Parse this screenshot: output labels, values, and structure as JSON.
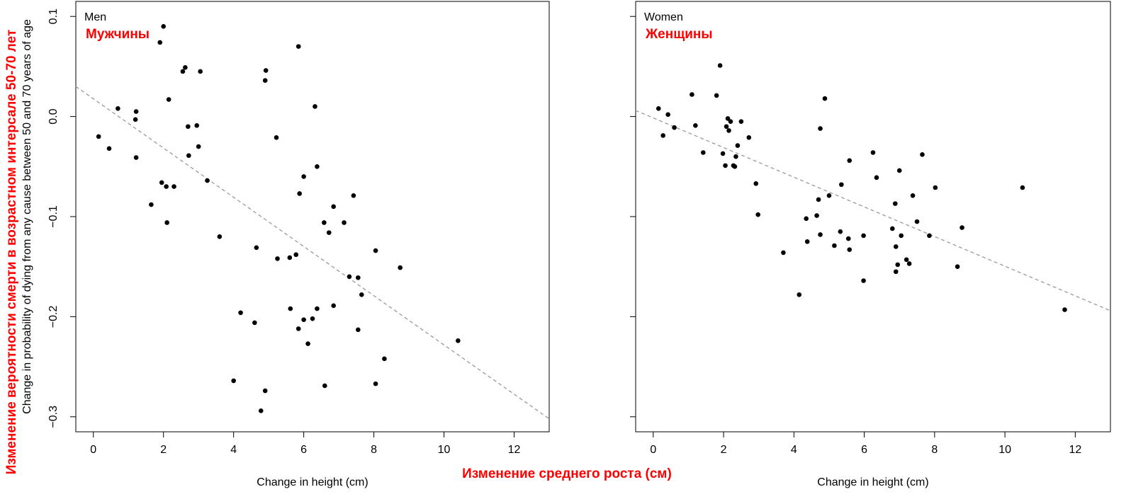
{
  "annotations": {
    "ylabel_ru": "Изменение вероятности смерти в возрастном интерсале 50-70 лет",
    "xlabel_ru": "Изменение среднего роста (см)"
  },
  "colors": {
    "point": "#000000",
    "trend": "#999999",
    "annotation": "#ff0000"
  },
  "chart_data": [
    {
      "type": "scatter",
      "title": "Men",
      "title_ru": "Мужчины",
      "xlabel": "Change in height (cm)",
      "ylabel": "Change in probability of dying from any cause between 50 and 70 years of age",
      "xlim": [
        -0.5,
        13
      ],
      "ylim": [
        -0.315,
        0.115
      ],
      "xticks": [
        0,
        2,
        4,
        6,
        8,
        10,
        12
      ],
      "yticks": [
        0.1,
        0.0,
        -0.1,
        -0.2,
        -0.3
      ],
      "ytick_labels": [
        "0.1",
        "0.0",
        "−0.1",
        "−0.2",
        "−0.3"
      ],
      "grid": false,
      "trendline": {
        "style": "dashed",
        "x": [
          -0.5,
          13
        ],
        "y": [
          0.03,
          -0.302
        ]
      },
      "points": [
        [
          0.15,
          -0.02
        ],
        [
          0.45,
          -0.032
        ],
        [
          0.7,
          0.008
        ],
        [
          1.2,
          -0.003
        ],
        [
          1.22,
          0.005
        ],
        [
          1.22,
          -0.041
        ],
        [
          1.65,
          -0.088
        ],
        [
          1.9,
          0.074
        ],
        [
          1.95,
          -0.066
        ],
        [
          2.0,
          0.09
        ],
        [
          2.08,
          -0.07
        ],
        [
          2.1,
          -0.106
        ],
        [
          2.15,
          0.017
        ],
        [
          2.3,
          -0.07
        ],
        [
          2.55,
          0.045
        ],
        [
          2.62,
          0.049
        ],
        [
          2.7,
          -0.01
        ],
        [
          2.72,
          -0.039
        ],
        [
          2.95,
          -0.009
        ],
        [
          3.0,
          -0.03
        ],
        [
          3.05,
          0.045
        ],
        [
          3.25,
          -0.064
        ],
        [
          3.6,
          -0.12
        ],
        [
          4.0,
          -0.264
        ],
        [
          4.2,
          -0.196
        ],
        [
          4.6,
          -0.206
        ],
        [
          4.65,
          -0.131
        ],
        [
          4.78,
          -0.294
        ],
        [
          4.9,
          -0.274
        ],
        [
          4.9,
          0.036
        ],
        [
          4.92,
          0.046
        ],
        [
          5.22,
          -0.021
        ],
        [
          5.25,
          -0.142
        ],
        [
          5.6,
          -0.141
        ],
        [
          5.62,
          -0.192
        ],
        [
          5.78,
          -0.138
        ],
        [
          5.85,
          -0.212
        ],
        [
          5.85,
          0.07
        ],
        [
          5.88,
          -0.077
        ],
        [
          6.0,
          -0.06
        ],
        [
          6.0,
          -0.203
        ],
        [
          6.12,
          -0.227
        ],
        [
          6.25,
          -0.202
        ],
        [
          6.32,
          0.01
        ],
        [
          6.38,
          -0.05
        ],
        [
          6.38,
          -0.192
        ],
        [
          6.58,
          -0.106
        ],
        [
          6.6,
          -0.269
        ],
        [
          6.72,
          -0.116
        ],
        [
          6.85,
          -0.09
        ],
        [
          6.85,
          -0.189
        ],
        [
          7.15,
          -0.106
        ],
        [
          7.3,
          -0.16
        ],
        [
          7.42,
          -0.079
        ],
        [
          7.55,
          -0.213
        ],
        [
          7.55,
          -0.161
        ],
        [
          7.65,
          -0.178
        ],
        [
          8.05,
          -0.134
        ],
        [
          8.05,
          -0.267
        ],
        [
          8.3,
          -0.242
        ],
        [
          8.75,
          -0.151
        ],
        [
          10.4,
          -0.224
        ]
      ]
    },
    {
      "type": "scatter",
      "title": "Women",
      "title_ru": "Женщины",
      "xlabel": "Change in height (cm)",
      "xlim": [
        -0.5,
        13
      ],
      "ylim": [
        -0.315,
        0.115
      ],
      "xticks": [
        0,
        2,
        4,
        6,
        8,
        10,
        12
      ],
      "yticks": [
        0.1,
        0.0,
        -0.1,
        -0.2,
        -0.3
      ],
      "grid": false,
      "trendline": {
        "style": "dashed",
        "x": [
          -0.5,
          13
        ],
        "y": [
          0.006,
          -0.194
        ]
      },
      "points": [
        [
          0.15,
          0.008
        ],
        [
          0.28,
          -0.019
        ],
        [
          0.42,
          0.002
        ],
        [
          0.6,
          -0.011
        ],
        [
          1.1,
          0.022
        ],
        [
          1.2,
          -0.009
        ],
        [
          1.42,
          -0.036
        ],
        [
          1.8,
          0.021
        ],
        [
          1.9,
          0.051
        ],
        [
          1.98,
          -0.037
        ],
        [
          2.05,
          -0.049
        ],
        [
          2.08,
          -0.01
        ],
        [
          2.12,
          -0.002
        ],
        [
          2.15,
          -0.014
        ],
        [
          2.2,
          -0.005
        ],
        [
          2.28,
          -0.049
        ],
        [
          2.32,
          -0.05
        ],
        [
          2.35,
          -0.04
        ],
        [
          2.4,
          -0.029
        ],
        [
          2.5,
          -0.005
        ],
        [
          2.72,
          -0.021
        ],
        [
          2.92,
          -0.067
        ],
        [
          2.98,
          -0.098
        ],
        [
          3.7,
          -0.136
        ],
        [
          4.15,
          -0.178
        ],
        [
          4.35,
          -0.102
        ],
        [
          4.38,
          -0.125
        ],
        [
          4.65,
          -0.099
        ],
        [
          4.7,
          -0.083
        ],
        [
          4.75,
          -0.118
        ],
        [
          4.75,
          -0.012
        ],
        [
          4.88,
          0.018
        ],
        [
          5.0,
          -0.079
        ],
        [
          5.15,
          -0.129
        ],
        [
          5.32,
          -0.115
        ],
        [
          5.35,
          -0.068
        ],
        [
          5.55,
          -0.122
        ],
        [
          5.58,
          -0.133
        ],
        [
          5.58,
          -0.044
        ],
        [
          5.98,
          -0.119
        ],
        [
          5.98,
          -0.164
        ],
        [
          6.25,
          -0.036
        ],
        [
          6.35,
          -0.061
        ],
        [
          6.8,
          -0.112
        ],
        [
          6.88,
          -0.087
        ],
        [
          6.9,
          -0.155
        ],
        [
          6.9,
          -0.13
        ],
        [
          6.95,
          -0.148
        ],
        [
          7.0,
          -0.054
        ],
        [
          7.05,
          -0.119
        ],
        [
          7.2,
          -0.143
        ],
        [
          7.28,
          -0.147
        ],
        [
          7.38,
          -0.079
        ],
        [
          7.5,
          -0.105
        ],
        [
          7.65,
          -0.038
        ],
        [
          7.85,
          -0.119
        ],
        [
          8.02,
          -0.071
        ],
        [
          8.65,
          -0.15
        ],
        [
          8.78,
          -0.111
        ],
        [
          10.5,
          -0.071
        ],
        [
          11.7,
          -0.193
        ]
      ]
    }
  ]
}
